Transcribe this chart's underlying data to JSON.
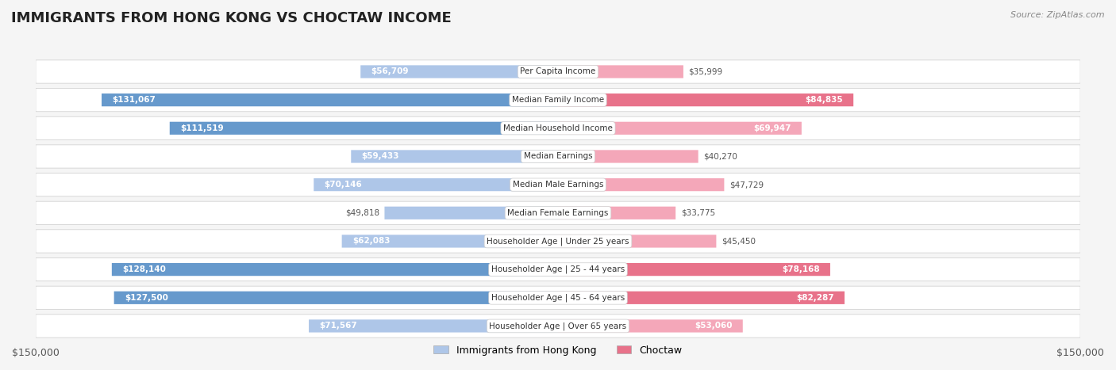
{
  "title": "IMMIGRANTS FROM HONG KONG VS CHOCTAW INCOME",
  "source": "Source: ZipAtlas.com",
  "categories": [
    "Per Capita Income",
    "Median Family Income",
    "Median Household Income",
    "Median Earnings",
    "Median Male Earnings",
    "Median Female Earnings",
    "Householder Age | Under 25 years",
    "Householder Age | 25 - 44 years",
    "Householder Age | 45 - 64 years",
    "Householder Age | Over 65 years"
  ],
  "hk_values": [
    56709,
    131067,
    111519,
    59433,
    70146,
    49818,
    62083,
    128140,
    127500,
    71567
  ],
  "choctaw_values": [
    35999,
    84835,
    69947,
    40270,
    47729,
    33775,
    45450,
    78168,
    82287,
    53060
  ],
  "hk_labels": [
    "$56,709",
    "$131,067",
    "$111,519",
    "$59,433",
    "$70,146",
    "$49,818",
    "$62,083",
    "$128,140",
    "$127,500",
    "$71,567"
  ],
  "choctaw_labels": [
    "$35,999",
    "$84,835",
    "$69,947",
    "$40,270",
    "$47,729",
    "$33,775",
    "$45,450",
    "$78,168",
    "$82,287",
    "$53,060"
  ],
  "hk_color_light": "#aec6e8",
  "hk_color_dark": "#6699cc",
  "choctaw_color_light": "#f4a7b9",
  "choctaw_color_dark": "#e8728a",
  "label_center_bg": "#ffffff",
  "max_value": 150000,
  "background_color": "#f5f5f5",
  "row_bg_color": "#ffffff",
  "legend_hk": "Immigrants from Hong Kong",
  "legend_choctaw": "Choctaw"
}
